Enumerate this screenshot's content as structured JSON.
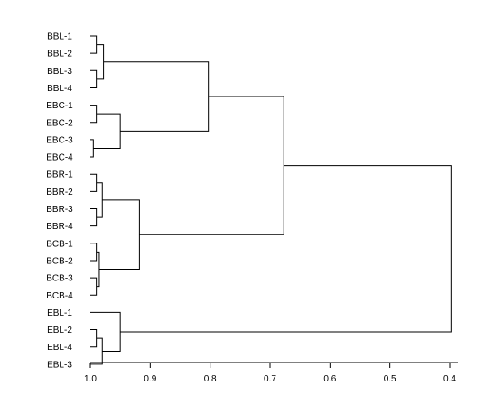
{
  "chart_data": {
    "type": "dendrogram",
    "title": "",
    "xlabel": "",
    "ylabel": "",
    "orientation": "left-to-right",
    "x_axis": {
      "min": 1.0,
      "max": 0.4,
      "ticks": [
        {
          "value": 1.0,
          "label": "1.0"
        },
        {
          "value": 0.9,
          "label": "0.9"
        },
        {
          "value": 0.8,
          "label": "0.8"
        },
        {
          "value": 0.7,
          "label": "0.7"
        },
        {
          "value": 0.6,
          "label": "0.6"
        },
        {
          "value": 0.5,
          "label": "0.5"
        },
        {
          "value": 0.4,
          "label": "0.4"
        }
      ]
    },
    "leaves": [
      "BBL-1",
      "BBL-2",
      "BBL-3",
      "BBL-4",
      "EBC-1",
      "EBC-2",
      "EBC-3",
      "EBC-4",
      "BBR-1",
      "BBR-2",
      "BBR-3",
      "BBR-4",
      "BCB-1",
      "BCB-2",
      "BCB-3",
      "BCB-4",
      "EBL-1",
      "EBL-2",
      "EBL-4",
      "EBL-3"
    ],
    "merges": [
      {
        "id": "n1",
        "children": [
          "BBL-1",
          "BBL-2"
        ],
        "height": 0.99
      },
      {
        "id": "n2",
        "children": [
          "BBL-3",
          "BBL-4"
        ],
        "height": 0.99
      },
      {
        "id": "n3",
        "children": [
          "n1",
          "n2"
        ],
        "height": 0.978
      },
      {
        "id": "n4",
        "children": [
          "EBC-1",
          "EBC-2"
        ],
        "height": 0.99
      },
      {
        "id": "n5",
        "children": [
          "EBC-3",
          "EBC-4"
        ],
        "height": 0.995
      },
      {
        "id": "n6",
        "children": [
          "n4",
          "n5"
        ],
        "height": 0.95
      },
      {
        "id": "n7",
        "children": [
          "n3",
          "n6"
        ],
        "height": 0.803
      },
      {
        "id": "n8",
        "children": [
          "BBR-1",
          "BBR-2"
        ],
        "height": 0.99
      },
      {
        "id": "n9",
        "children": [
          "BBR-3",
          "BBR-4"
        ],
        "height": 0.99
      },
      {
        "id": "n10",
        "children": [
          "n8",
          "n9"
        ],
        "height": 0.98
      },
      {
        "id": "n11",
        "children": [
          "BCB-1",
          "BCB-2"
        ],
        "height": 0.99
      },
      {
        "id": "n12",
        "children": [
          "BCB-3",
          "BCB-4"
        ],
        "height": 0.99
      },
      {
        "id": "n13",
        "children": [
          "n11",
          "n12"
        ],
        "height": 0.985
      },
      {
        "id": "n14",
        "children": [
          "n10",
          "n13"
        ],
        "height": 0.918
      },
      {
        "id": "n15",
        "children": [
          "n7",
          "n14"
        ],
        "height": 0.677
      },
      {
        "id": "n16",
        "children": [
          "EBL-2",
          "EBL-4"
        ],
        "height": 0.99
      },
      {
        "id": "n17",
        "children": [
          "n16",
          "EBL-3"
        ],
        "height": 0.98
      },
      {
        "id": "n18",
        "children": [
          "EBL-1",
          "n17"
        ],
        "height": 0.95
      },
      {
        "id": "n19",
        "children": [
          "n15",
          "n18"
        ],
        "height": 0.398
      }
    ],
    "grid": false,
    "legend": "none"
  }
}
